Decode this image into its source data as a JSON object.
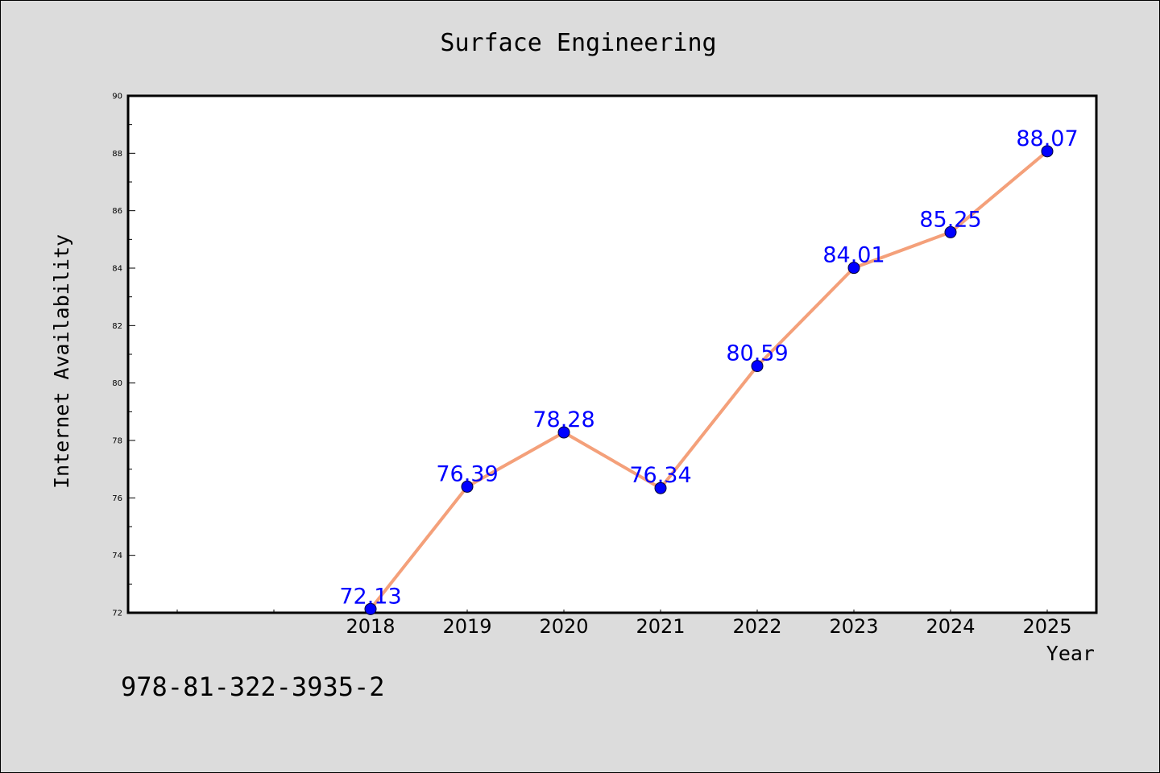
{
  "chart_data": {
    "type": "line",
    "title": "Surface Engineering",
    "xlabel": "Year",
    "ylabel": "Internet Availability",
    "categories": [
      "2018",
      "2019",
      "2020",
      "2021",
      "2022",
      "2023",
      "2024",
      "2025"
    ],
    "series": [
      {
        "values": [
          72.13,
          76.39,
          78.28,
          76.34,
          80.59,
          84.01,
          85.25,
          88.07
        ]
      }
    ],
    "data_labels": [
      "72.13",
      "76.39",
      "78.28",
      "76.34",
      "80.59",
      "84.01",
      "85.25",
      "88.07"
    ],
    "ylim": [
      72,
      90
    ],
    "y_ticks": [
      "72",
      "74",
      "76",
      "78",
      "80",
      "82",
      "84",
      "86",
      "88",
      "90"
    ],
    "grid": false,
    "line_color": "#f4a07a",
    "marker_color": "#0000ff",
    "label_color": "#0000ff"
  },
  "footer": {
    "isbn": "978-81-322-3935-2"
  }
}
